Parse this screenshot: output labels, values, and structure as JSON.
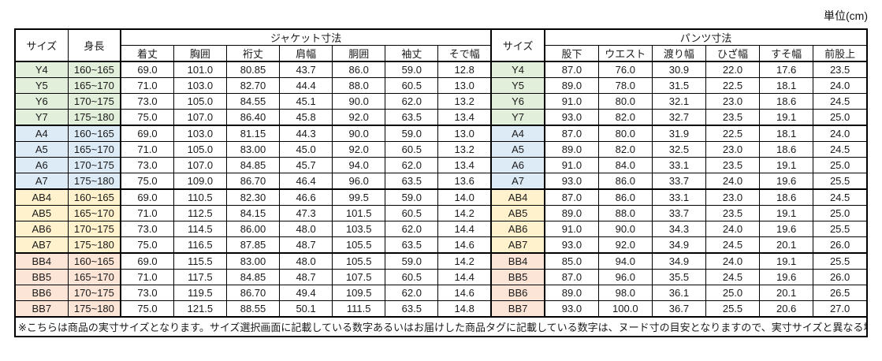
{
  "unit_label": "単位(cm)",
  "colors": {
    "group_y": "#E2EFDA",
    "group_a": "#DDEBF7",
    "group_ab": "#FFF2CC",
    "group_bb": "#FCE4D6",
    "border": "#000000",
    "text": "#1a1a1a"
  },
  "table": {
    "headers": {
      "size": "サイズ",
      "height": "身長",
      "jacket_group": "ジャケット寸法",
      "jacket_cols": [
        "着丈",
        "胸囲",
        "裄丈",
        "肩幅",
        "胴囲",
        "袖丈",
        "そで幅"
      ],
      "size2": "サイズ",
      "pants_group": "パンツ寸法",
      "pants_cols": [
        "股下",
        "ウエスト",
        "渡り幅",
        "ひざ幅",
        "すそ幅",
        "前股上"
      ]
    },
    "groups": [
      {
        "name": "Y",
        "color": "#E2EFDA",
        "rows": [
          {
            "size": "Y4",
            "height": "160~165",
            "jacket": [
              "69.0",
              "101.0",
              "80.85",
              "43.7",
              "86.0",
              "59.0",
              "12.8"
            ],
            "pants": [
              "87.0",
              "76.0",
              "30.9",
              "22.0",
              "17.6",
              "23.5"
            ]
          },
          {
            "size": "Y5",
            "height": "165~170",
            "jacket": [
              "71.0",
              "103.0",
              "82.70",
              "44.4",
              "88.0",
              "60.5",
              "13.0"
            ],
            "pants": [
              "89.0",
              "78.0",
              "31.5",
              "22.5",
              "18.1",
              "24.0"
            ]
          },
          {
            "size": "Y6",
            "height": "170~175",
            "jacket": [
              "73.0",
              "105.0",
              "84.55",
              "45.1",
              "90.0",
              "62.0",
              "13.2"
            ],
            "pants": [
              "91.0",
              "80.0",
              "32.1",
              "23.0",
              "18.6",
              "24.5"
            ]
          },
          {
            "size": "Y7",
            "height": "175~180",
            "jacket": [
              "75.0",
              "107.0",
              "86.40",
              "45.8",
              "92.0",
              "63.5",
              "13.4"
            ],
            "pants": [
              "93.0",
              "82.0",
              "32.7",
              "23.5",
              "19.1",
              "25.0"
            ]
          }
        ]
      },
      {
        "name": "A",
        "color": "#DDEBF7",
        "rows": [
          {
            "size": "A4",
            "height": "160~165",
            "jacket": [
              "69.0",
              "103.0",
              "81.15",
              "44.3",
              "90.0",
              "59.0",
              "13.0"
            ],
            "pants": [
              "87.0",
              "80.0",
              "31.9",
              "22.5",
              "18.1",
              "24.0"
            ]
          },
          {
            "size": "A5",
            "height": "165~170",
            "jacket": [
              "71.0",
              "105.0",
              "83.00",
              "45.0",
              "92.0",
              "60.5",
              "13.2"
            ],
            "pants": [
              "89.0",
              "82.0",
              "32.5",
              "23.0",
              "18.6",
              "24.5"
            ]
          },
          {
            "size": "A6",
            "height": "170~175",
            "jacket": [
              "73.0",
              "107.0",
              "84.85",
              "45.7",
              "94.0",
              "62.0",
              "13.4"
            ],
            "pants": [
              "91.0",
              "84.0",
              "33.1",
              "23.5",
              "19.1",
              "25.0"
            ]
          },
          {
            "size": "A7",
            "height": "175~180",
            "jacket": [
              "75.0",
              "109.0",
              "86.70",
              "46.4",
              "96.0",
              "63.5",
              "13.6"
            ],
            "pants": [
              "93.0",
              "86.0",
              "33.7",
              "24.0",
              "19.6",
              "25.5"
            ]
          }
        ]
      },
      {
        "name": "AB",
        "color": "#FFF2CC",
        "rows": [
          {
            "size": "AB4",
            "height": "160~165",
            "jacket": [
              "69.0",
              "110.5",
              "82.30",
              "46.6",
              "99.5",
              "59.0",
              "14.0"
            ],
            "pants": [
              "87.0",
              "86.0",
              "33.1",
              "23.0",
              "18.6",
              "24.5"
            ]
          },
          {
            "size": "AB5",
            "height": "165~170",
            "jacket": [
              "71.0",
              "112.5",
              "84.15",
              "47.3",
              "101.5",
              "60.5",
              "14.2"
            ],
            "pants": [
              "89.0",
              "88.0",
              "33.7",
              "23.5",
              "19.1",
              "25.0"
            ]
          },
          {
            "size": "AB6",
            "height": "170~175",
            "jacket": [
              "73.0",
              "114.5",
              "86.00",
              "48.0",
              "103.5",
              "62.0",
              "14.4"
            ],
            "pants": [
              "91.0",
              "90.0",
              "34.3",
              "24.0",
              "19.6",
              "25.5"
            ]
          },
          {
            "size": "AB7",
            "height": "175~180",
            "jacket": [
              "75.0",
              "116.5",
              "87.85",
              "48.7",
              "105.5",
              "63.5",
              "14.6"
            ],
            "pants": [
              "93.0",
              "92.0",
              "34.9",
              "24.5",
              "20.1",
              "26.0"
            ]
          }
        ]
      },
      {
        "name": "BB",
        "color": "#FCE4D6",
        "rows": [
          {
            "size": "BB4",
            "height": "160~165",
            "jacket": [
              "69.0",
              "115.5",
              "83.00",
              "48.0",
              "105.5",
              "59.0",
              "14.2"
            ],
            "pants": [
              "85.0",
              "94.0",
              "34.9",
              "24.0",
              "19.1",
              "25.5"
            ]
          },
          {
            "size": "BB5",
            "height": "165~170",
            "jacket": [
              "71.0",
              "117.5",
              "84.85",
              "48.7",
              "107.5",
              "60.5",
              "14.4"
            ],
            "pants": [
              "87.0",
              "96.0",
              "35.5",
              "24.5",
              "19.6",
              "26.0"
            ]
          },
          {
            "size": "BB6",
            "height": "170~175",
            "jacket": [
              "73.0",
              "119.5",
              "86.70",
              "49.4",
              "109.5",
              "62.0",
              "14.6"
            ],
            "pants": [
              "89.0",
              "98.0",
              "36.1",
              "25.0",
              "20.1",
              "26.5"
            ]
          },
          {
            "size": "BB7",
            "height": "175~180",
            "jacket": [
              "75.0",
              "121.5",
              "88.55",
              "50.1",
              "111.5",
              "63.5",
              "14.8"
            ],
            "pants": [
              "93.0",
              "100.0",
              "36.7",
              "25.5",
              "20.6",
              "27.0"
            ]
          }
        ]
      }
    ]
  },
  "footnote": "※こちらは商品の実寸サイズとなります。サイズ選択画面に記載している数字あるいはお届けした商品タグに記載している数字は、ヌード寸の目安となりますので、実寸サイズと異なる場合がございます。"
}
